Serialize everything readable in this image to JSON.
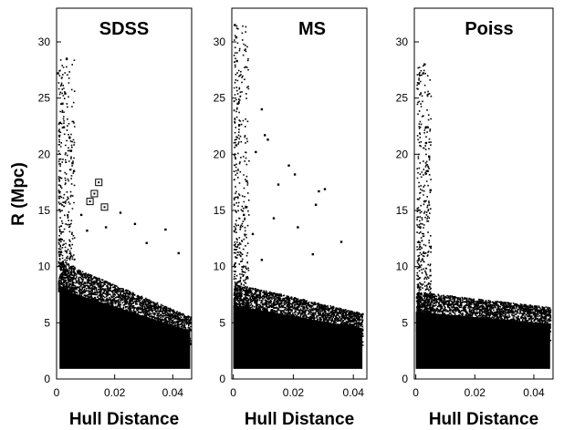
{
  "figure": {
    "ylabel": "R (Mpc)"
  },
  "chart_data": [
    {
      "type": "scatter",
      "title": "SDSS",
      "xlabel": "Hull Distance",
      "ylabel": "R (Mpc)",
      "xlim": [
        0,
        0.0465
      ],
      "ylim": [
        0,
        33
      ],
      "xticks": [
        "0",
        "0.02",
        "0.04"
      ],
      "yticks": [
        "0",
        "5",
        "10",
        "15",
        "20",
        "25",
        "30"
      ],
      "grid": false,
      "dense_region": {
        "x": [
          0.001,
          0.046
        ],
        "y_max_at_x0": 9.8,
        "y_max_at_xmax": 5.2
      },
      "plume": {
        "x": [
          0.0005,
          0.006
        ],
        "y_max": 28.5
      },
      "marked_points": [
        {
          "x": 0.0145,
          "y": 17.5
        },
        {
          "x": 0.013,
          "y": 16.5
        },
        {
          "x": 0.0115,
          "y": 15.8
        },
        {
          "x": 0.0165,
          "y": 15.3
        }
      ],
      "sample_points": [
        {
          "x": 0.0005,
          "y": 27.2
        },
        {
          "x": 0.0035,
          "y": 28.5
        },
        {
          "x": 0.003,
          "y": 25.4
        },
        {
          "x": 0.002,
          "y": 24.5
        },
        {
          "x": 0.0012,
          "y": 22.8
        },
        {
          "x": 0.0025,
          "y": 22.4
        },
        {
          "x": 0.0045,
          "y": 21.5
        },
        {
          "x": 0.005,
          "y": 20.3
        },
        {
          "x": 0.0055,
          "y": 19.2
        },
        {
          "x": 0.006,
          "y": 18.5
        },
        {
          "x": 0.0085,
          "y": 14.6
        },
        {
          "x": 0.022,
          "y": 14.8
        },
        {
          "x": 0.027,
          "y": 13.8
        },
        {
          "x": 0.0375,
          "y": 13.3
        },
        {
          "x": 0.0105,
          "y": 13.2
        },
        {
          "x": 0.017,
          "y": 13.5
        },
        {
          "x": 0.031,
          "y": 12.1
        },
        {
          "x": 0.042,
          "y": 11.2
        }
      ]
    },
    {
      "type": "scatter",
      "title": "MS",
      "xlabel": "Hull Distance",
      "ylabel": "",
      "xlim": [
        -0.0005,
        0.0445
      ],
      "ylim": [
        0,
        33
      ],
      "xticks": [
        "0",
        "0.02",
        "0.04"
      ],
      "yticks": [
        "0",
        "5",
        "10",
        "15",
        "20",
        "25",
        "30"
      ],
      "grid": false,
      "dense_region": {
        "x": [
          0.0,
          0.043
        ],
        "y_max_at_x0": 8.0,
        "y_max_at_xmax": 5.5
      },
      "plume": {
        "x": [
          0.0,
          0.005
        ],
        "y_max": 31.5
      },
      "marked_points": [],
      "sample_points": [
        {
          "x": 0.0005,
          "y": 31.5
        },
        {
          "x": 0.001,
          "y": 30.4
        },
        {
          "x": 0.0012,
          "y": 28.3
        },
        {
          "x": 0.0015,
          "y": 24.5
        },
        {
          "x": 0.002,
          "y": 22.6
        },
        {
          "x": 0.001,
          "y": 20.8
        },
        {
          "x": 0.0095,
          "y": 24.0
        },
        {
          "x": 0.0105,
          "y": 21.7
        },
        {
          "x": 0.0115,
          "y": 21.3
        },
        {
          "x": 0.0075,
          "y": 20.2
        },
        {
          "x": 0.0185,
          "y": 19.0
        },
        {
          "x": 0.0205,
          "y": 18.2
        },
        {
          "x": 0.0285,
          "y": 16.7
        },
        {
          "x": 0.0305,
          "y": 16.9
        },
        {
          "x": 0.015,
          "y": 17.3
        },
        {
          "x": 0.0045,
          "y": 17.6
        },
        {
          "x": 0.0275,
          "y": 15.5
        },
        {
          "x": 0.0035,
          "y": 14.6
        },
        {
          "x": 0.0135,
          "y": 14.3
        },
        {
          "x": 0.0215,
          "y": 13.5
        },
        {
          "x": 0.0065,
          "y": 12.9
        },
        {
          "x": 0.036,
          "y": 12.2
        },
        {
          "x": 0.0265,
          "y": 11.1
        },
        {
          "x": 0.0095,
          "y": 10.6
        }
      ]
    },
    {
      "type": "scatter",
      "title": "Poiss",
      "xlabel": "Hull Distance",
      "ylabel": "",
      "xlim": [
        -0.0005,
        0.0465
      ],
      "ylim": [
        0,
        33
      ],
      "xticks": [
        "0",
        "0.02",
        "0.04"
      ],
      "yticks": [
        "0",
        "5",
        "10",
        "15",
        "20",
        "25",
        "30"
      ],
      "grid": false,
      "dense_region": {
        "x": [
          0.0,
          0.0455
        ],
        "y_max_at_x0": 7.3,
        "y_max_at_xmax": 6.0
      },
      "plume": {
        "x": [
          0.0002,
          0.005
        ],
        "y_max": 28.0
      },
      "marked_points": [],
      "sample_points": [
        {
          "x": 0.003,
          "y": 28.0
        },
        {
          "x": 0.0025,
          "y": 27.2
        },
        {
          "x": 0.001,
          "y": 26.3
        },
        {
          "x": 0.0035,
          "y": 22.4
        },
        {
          "x": 0.004,
          "y": 22.4
        },
        {
          "x": 0.0035,
          "y": 21.0
        },
        {
          "x": 0.0045,
          "y": 19.8
        },
        {
          "x": 0.004,
          "y": 18.5
        },
        {
          "x": 0.005,
          "y": 16.8
        },
        {
          "x": 0.003,
          "y": 15.8
        },
        {
          "x": 0.0015,
          "y": 13.5
        }
      ]
    }
  ]
}
